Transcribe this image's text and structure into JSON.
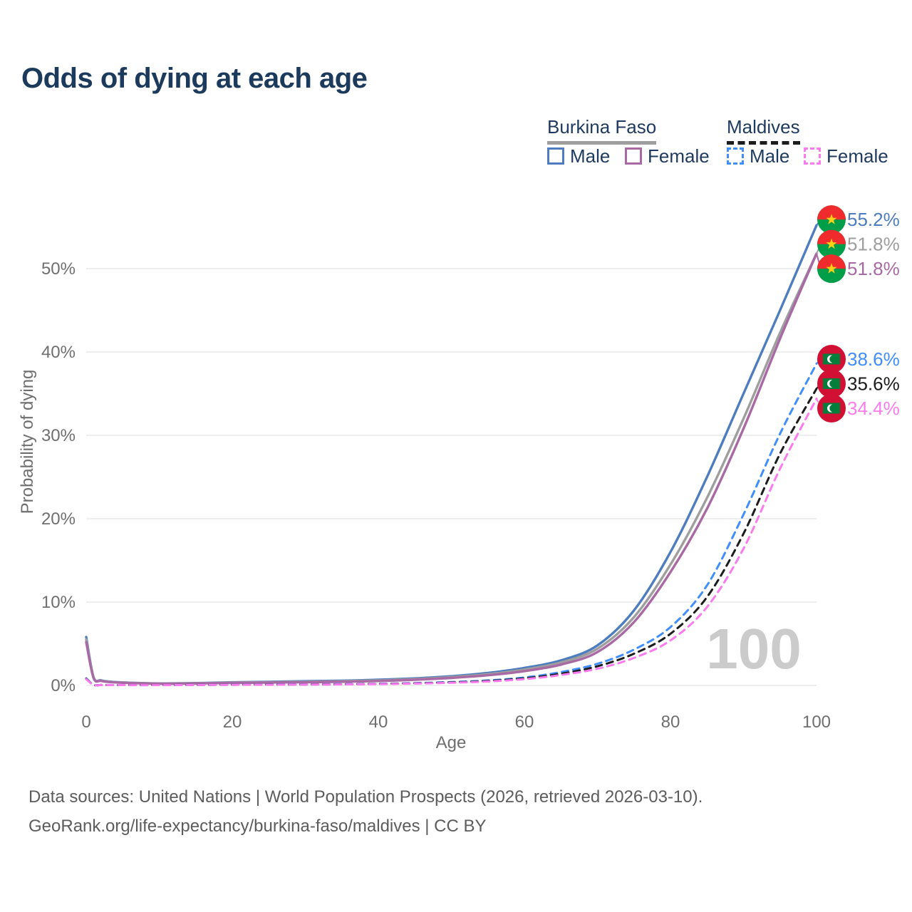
{
  "title": "Odds of dying at each age",
  "legend": {
    "groups": [
      {
        "name": "Burkina Faso",
        "line_style": "solid",
        "line_color": "#9e9e9e",
        "items": [
          {
            "label": "Male",
            "color": "#4d7dbf",
            "dashed": false
          },
          {
            "label": "Female",
            "color": "#a869a4",
            "dashed": false
          }
        ]
      },
      {
        "name": "Maldives",
        "line_style": "dashed",
        "line_color": "#1c1c1c",
        "items": [
          {
            "label": "Male",
            "color": "#3f8efc",
            "dashed": true
          },
          {
            "label": "Female",
            "color": "#fb7bef",
            "dashed": true
          }
        ]
      }
    ]
  },
  "chart_data": {
    "type": "line",
    "title": "Odds of dying at each age",
    "xlabel": "Age",
    "ylabel": "Probability of dying",
    "xlim": [
      0,
      100
    ],
    "ylim": [
      0,
      56
    ],
    "xticks": [
      0,
      20,
      40,
      60,
      80,
      100
    ],
    "yticks": [
      0,
      10,
      20,
      30,
      40,
      50
    ],
    "grid": true,
    "legend_position": "top-right",
    "watermark": "100",
    "ages": [
      0,
      1,
      2,
      3,
      5,
      10,
      15,
      20,
      25,
      30,
      35,
      40,
      45,
      50,
      55,
      60,
      65,
      70,
      75,
      80,
      85,
      90,
      95,
      100
    ],
    "series": [
      {
        "name": "Burkina Faso Male",
        "country": "Burkina Faso",
        "color": "#4d7dbf",
        "dashed": false,
        "flag": "burkina-faso",
        "end_label": "55.2%",
        "values": [
          5.8,
          1.0,
          0.62,
          0.48,
          0.36,
          0.24,
          0.28,
          0.38,
          0.44,
          0.5,
          0.57,
          0.68,
          0.85,
          1.1,
          1.5,
          2.1,
          3.0,
          4.8,
          9.0,
          16.0,
          25.0,
          35.0,
          45.0,
          55.2
        ]
      },
      {
        "name": "Burkina Faso",
        "country": "Burkina Faso",
        "color": "#9e9e9e",
        "dashed": false,
        "flag": "burkina-faso",
        "end_label": "51.8%",
        "values": [
          5.5,
          0.95,
          0.58,
          0.45,
          0.34,
          0.22,
          0.26,
          0.34,
          0.39,
          0.44,
          0.5,
          0.6,
          0.76,
          1.0,
          1.35,
          1.9,
          2.75,
          4.4,
          8.2,
          14.5,
          22.5,
          32.0,
          42.3,
          51.8
        ]
      },
      {
        "name": "Burkina Faso Female",
        "country": "Burkina Faso",
        "color": "#a869a4",
        "dashed": false,
        "flag": "burkina-faso",
        "end_label": "51.8%",
        "values": [
          5.2,
          0.9,
          0.55,
          0.42,
          0.32,
          0.21,
          0.24,
          0.3,
          0.34,
          0.38,
          0.44,
          0.53,
          0.68,
          0.9,
          1.22,
          1.72,
          2.5,
          4.0,
          7.6,
          13.6,
          21.2,
          30.8,
          41.6,
          51.8
        ]
      },
      {
        "name": "Maldives Male",
        "country": "Maldives",
        "color": "#3f8efc",
        "dashed": true,
        "flag": "maldives",
        "end_label": "38.6%",
        "values": [
          0.85,
          0.07,
          0.05,
          0.05,
          0.04,
          0.04,
          0.06,
          0.09,
          0.1,
          0.12,
          0.15,
          0.2,
          0.28,
          0.4,
          0.6,
          0.95,
          1.6,
          2.6,
          4.3,
          7.0,
          12.0,
          20.5,
          30.2,
          38.6
        ]
      },
      {
        "name": "Maldives",
        "country": "Maldives",
        "color": "#1c1c1c",
        "dashed": true,
        "flag": "maldives",
        "end_label": "35.6%",
        "values": [
          0.8,
          0.07,
          0.05,
          0.04,
          0.04,
          0.04,
          0.06,
          0.08,
          0.09,
          0.11,
          0.13,
          0.18,
          0.25,
          0.36,
          0.53,
          0.85,
          1.4,
          2.3,
          3.8,
          6.2,
          10.6,
          18.2,
          27.8,
          35.6
        ]
      },
      {
        "name": "Maldives Female",
        "country": "Maldives",
        "color": "#fb7bef",
        "dashed": true,
        "flag": "maldives",
        "end_label": "34.4%",
        "values": [
          0.75,
          0.06,
          0.05,
          0.04,
          0.04,
          0.03,
          0.05,
          0.07,
          0.08,
          0.1,
          0.12,
          0.16,
          0.22,
          0.32,
          0.47,
          0.75,
          1.25,
          2.0,
          3.3,
          5.4,
          9.4,
          16.4,
          26.0,
          34.4
        ]
      }
    ]
  },
  "footer": {
    "line1": "Data sources: United Nations | World Population Prospects (2026, retrieved 2026-03-10).",
    "line2": "GeoRank.org/life-expectancy/burkina-faso/maldives | CC BY"
  }
}
